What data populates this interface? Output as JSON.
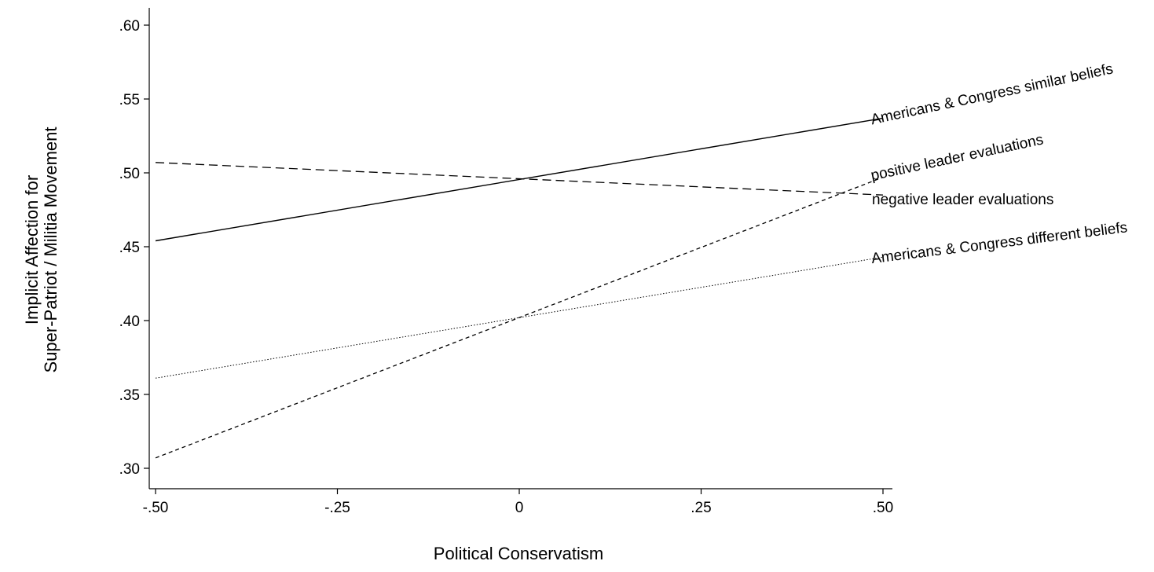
{
  "chart_data": {
    "type": "line",
    "title": "",
    "xlabel": "Political Conservatism",
    "ylabel_lines": [
      "Implicit Affection for",
      "Super-Patriot / Militia Movement"
    ],
    "xlim": [
      -0.5,
      0.5
    ],
    "ylim": [
      0.3,
      0.6
    ],
    "x_ticks": [
      -0.5,
      -0.25,
      0,
      0.25,
      0.5
    ],
    "x_tick_labels": [
      "-.50",
      "-.25",
      "0",
      ".25",
      ".50"
    ],
    "y_ticks": [
      0.3,
      0.35,
      0.4,
      0.45,
      0.5,
      0.55,
      0.6
    ],
    "y_tick_labels": [
      ".30",
      ".35",
      ".40",
      ".45",
      ".50",
      ".55",
      ".60"
    ],
    "grid": false,
    "legend": "none (lines labeled directly at right end)",
    "series": [
      {
        "name": "Americans & Congress similar beliefs",
        "x": [
          -0.5,
          0.5
        ],
        "y": [
          0.454,
          0.537
        ],
        "style": "solid"
      },
      {
        "name": "positive leader evaluations",
        "x": [
          -0.5,
          0.5
        ],
        "y": [
          0.307,
          0.497
        ],
        "style": "dashed"
      },
      {
        "name": "negative leader evaluations",
        "x": [
          -0.5,
          0.5
        ],
        "y": [
          0.507,
          0.485
        ],
        "style": "long-dashed"
      },
      {
        "name": "Americans & Congress different beliefs",
        "x": [
          -0.5,
          0.5
        ],
        "y": [
          0.361,
          0.443
        ],
        "style": "dotted"
      }
    ]
  }
}
